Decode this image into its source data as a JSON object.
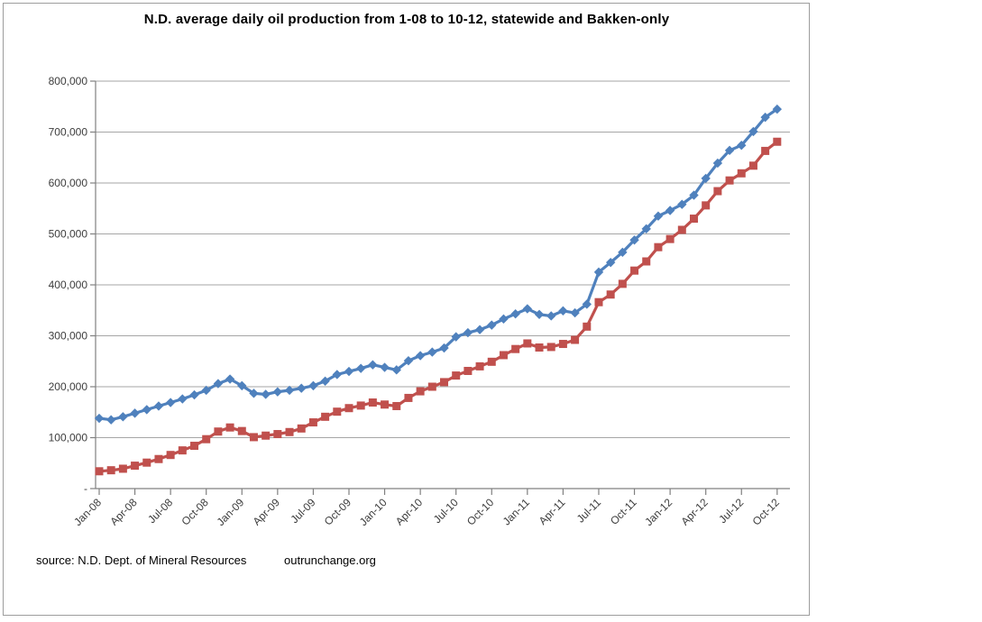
{
  "colors": {
    "statewide_line": "#4F81BD",
    "bakken_line": "#C0504D",
    "gridline": "#a6a6a6",
    "axis": "#808080",
    "tick_label": "#3d3d3d",
    "frame_border": "#9d9d9d",
    "background": "#ffffff"
  },
  "chart_data": {
    "type": "line",
    "title": "N.D. average daily oil production from 1-08 to 10-12, statewide and Bakken-only",
    "xlabel": "",
    "ylabel": "",
    "ylim": [
      0,
      800000
    ],
    "y_gridline_step": 100000,
    "grid": "horizontal-only",
    "legend_position": "none",
    "y_tick_labels": [
      "800,000",
      "700,000",
      "600,000",
      "500,000",
      "400,000",
      "300,000",
      "200,000",
      "100,000",
      "-"
    ],
    "x_tick_labels": [
      "Jan-08",
      "Apr-08",
      "Jul-08",
      "Oct-08",
      "Jan-09",
      "Apr-09",
      "Jul-09",
      "Oct-09",
      "Jan-10",
      "Apr-10",
      "Jul-10",
      "Oct-10",
      "Jan-11",
      "Apr-11",
      "Jul-11",
      "Oct-11",
      "Jan-12",
      "Apr-12",
      "Jul-12",
      "Oct-12"
    ],
    "x_tick_every_n_months": 3,
    "months": [
      "Jan-08",
      "Feb-08",
      "Mar-08",
      "Apr-08",
      "May-08",
      "Jun-08",
      "Jul-08",
      "Aug-08",
      "Sep-08",
      "Oct-08",
      "Nov-08",
      "Dec-08",
      "Jan-09",
      "Feb-09",
      "Mar-09",
      "Apr-09",
      "May-09",
      "Jun-09",
      "Jul-09",
      "Aug-09",
      "Sep-09",
      "Oct-09",
      "Nov-09",
      "Dec-09",
      "Jan-10",
      "Feb-10",
      "Mar-10",
      "Apr-10",
      "May-10",
      "Jun-10",
      "Jul-10",
      "Aug-10",
      "Sep-10",
      "Oct-10",
      "Nov-10",
      "Dec-10",
      "Jan-11",
      "Feb-11",
      "Mar-11",
      "Apr-11",
      "May-11",
      "Jun-11",
      "Jul-11",
      "Aug-11",
      "Sep-11",
      "Oct-11",
      "Nov-11",
      "Dec-11",
      "Jan-12",
      "Feb-12",
      "Mar-12",
      "Apr-12",
      "May-12",
      "Jun-12",
      "Jul-12",
      "Aug-12",
      "Sep-12",
      "Oct-12"
    ],
    "series": [
      {
        "name": "statewide",
        "marker": "diamond",
        "color": "#4F81BD",
        "values": [
          138000,
          135000,
          141000,
          148000,
          155000,
          162000,
          169000,
          176000,
          184000,
          193000,
          206000,
          215000,
          202000,
          187000,
          185000,
          190000,
          193000,
          197000,
          202000,
          211000,
          224000,
          230000,
          236000,
          243000,
          238000,
          233000,
          251000,
          261000,
          268000,
          276000,
          298000,
          306000,
          312000,
          321000,
          333000,
          343000,
          353000,
          342000,
          339000,
          349000,
          345000,
          362000,
          425000,
          444000,
          464000,
          488000,
          510000,
          535000,
          546000,
          558000,
          576000,
          609000,
          639000,
          664000,
          674000,
          701000,
          729000,
          745000
        ]
      },
      {
        "name": "Bakken-only",
        "marker": "square",
        "color": "#C0504D",
        "values": [
          34000,
          36000,
          39000,
          45000,
          51000,
          58000,
          66000,
          75000,
          84000,
          97000,
          112000,
          120000,
          113000,
          101000,
          104000,
          107000,
          111000,
          118000,
          130000,
          141000,
          151000,
          158000,
          163000,
          169000,
          165000,
          162000,
          178000,
          191000,
          200000,
          209000,
          222000,
          231000,
          240000,
          249000,
          262000,
          274000,
          285000,
          277000,
          278000,
          284000,
          292000,
          318000,
          366000,
          381000,
          402000,
          428000,
          446000,
          474000,
          490000,
          508000,
          530000,
          556000,
          584000,
          605000,
          619000,
          634000,
          663000,
          681000
        ]
      }
    ]
  },
  "footer": {
    "source_label": "source: N.D. Dept. of Mineral Resources",
    "site_label": "outrunchange.org"
  }
}
